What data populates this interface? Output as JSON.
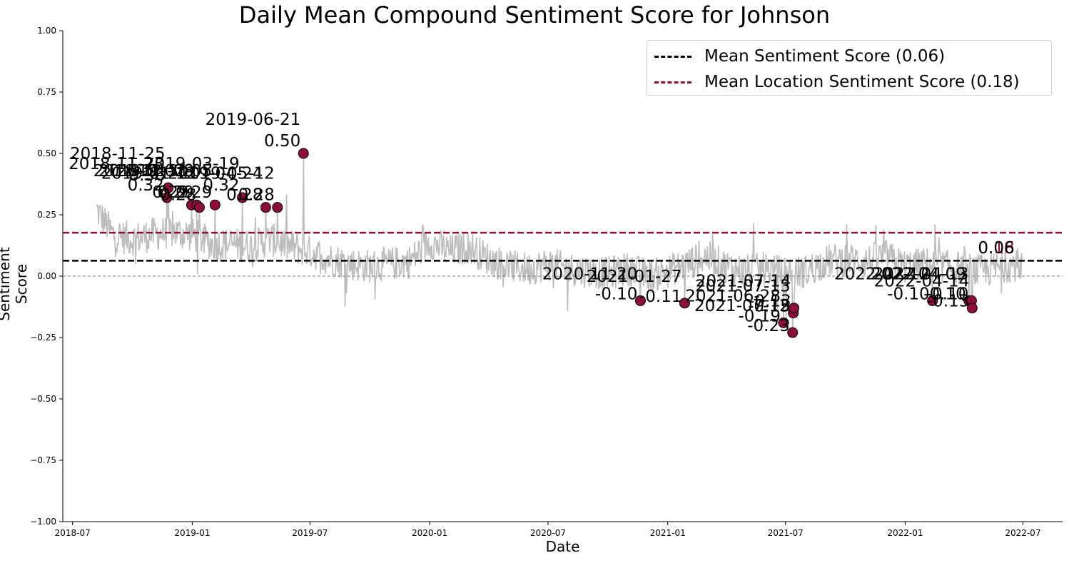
{
  "chart_data": {
    "type": "line",
    "title": "Daily Mean Compound Sentiment Score for Johnson",
    "xlabel": "Date",
    "ylabel": "Sentiment Score",
    "ylim": [
      -1.0,
      1.0
    ],
    "xlim": [
      "2018-06-16",
      "2022-08-31"
    ],
    "x_ticks": [
      "2018-07",
      "2019-01",
      "2019-07",
      "2020-01",
      "2020-07",
      "2021-01",
      "2021-07",
      "2022-01",
      "2022-07"
    ],
    "y_ticks": [
      "1.00",
      "0.75",
      "0.50",
      "0.25",
      "0.00",
      "−0.25",
      "−0.50",
      "−0.75",
      "−1.00"
    ],
    "grid": false,
    "legend_position": "top-right",
    "daily_series_range": [
      "2018-08-07",
      "2022-06-30"
    ],
    "daily_series_control_points": [
      [
        "2018-08-07",
        0.27
      ],
      [
        "2018-09-01",
        0.17
      ],
      [
        "2018-10-01",
        0.15
      ],
      [
        "2018-11-01",
        0.17
      ],
      [
        "2018-12-01",
        0.18
      ],
      [
        "2019-01-01",
        0.17
      ],
      [
        "2019-02-01",
        0.13
      ],
      [
        "2019-03-01",
        0.13
      ],
      [
        "2019-04-01",
        0.12
      ],
      [
        "2019-05-01",
        0.15
      ],
      [
        "2019-06-01",
        0.12
      ],
      [
        "2019-07-01",
        0.1
      ],
      [
        "2019-08-01",
        0.07
      ],
      [
        "2019-09-01",
        0.05
      ],
      [
        "2019-10-01",
        0.04
      ],
      [
        "2019-11-01",
        0.05
      ],
      [
        "2019-12-01",
        0.06
      ],
      [
        "2020-01-01",
        0.14
      ],
      [
        "2020-02-01",
        0.1
      ],
      [
        "2020-03-01",
        0.12
      ],
      [
        "2020-04-01",
        0.07
      ],
      [
        "2020-05-01",
        0.04
      ],
      [
        "2020-06-01",
        0.03
      ],
      [
        "2020-07-01",
        0.05
      ],
      [
        "2020-08-01",
        0.03
      ],
      [
        "2020-09-01",
        0.02
      ],
      [
        "2020-10-01",
        0.01
      ],
      [
        "2020-11-01",
        0.03
      ],
      [
        "2020-12-01",
        0.0
      ],
      [
        "2021-01-01",
        0.02
      ],
      [
        "2021-02-01",
        0.05
      ],
      [
        "2021-03-01",
        0.08
      ],
      [
        "2021-04-01",
        0.04
      ],
      [
        "2021-05-01",
        0.02
      ],
      [
        "2021-06-01",
        0.03
      ],
      [
        "2021-07-01",
        0.01
      ],
      [
        "2021-08-01",
        0.02
      ],
      [
        "2021-09-01",
        0.06
      ],
      [
        "2021-10-01",
        0.07
      ],
      [
        "2021-11-01",
        0.06
      ],
      [
        "2021-12-01",
        0.08
      ],
      [
        "2022-01-01",
        0.04
      ],
      [
        "2022-02-01",
        0.05
      ],
      [
        "2022-03-01",
        0.04
      ],
      [
        "2022-04-01",
        0.03
      ],
      [
        "2022-05-01",
        0.02
      ],
      [
        "2022-06-01",
        0.04
      ],
      [
        "2022-06-30",
        0.05
      ]
    ],
    "daily_series_color": "#bdbdbd",
    "reference_lines": [
      {
        "name": "Mean Sentiment Score (0.06)",
        "y": 0.063,
        "color": "#000000",
        "style": "dashed"
      },
      {
        "name": "Mean Location Sentiment Score (0.18)",
        "y": 0.177,
        "color": "#8b0f3b",
        "style": "dashed"
      },
      {
        "name": "",
        "y": 0.0,
        "color": "#808080",
        "style": "dashed-thin"
      }
    ],
    "highlighted_points": [
      {
        "date": "2018-11-23",
        "value": 0.32,
        "date_label": "2018-11-23",
        "value_label": "0.32"
      },
      {
        "date": "2018-11-25",
        "value": 0.36,
        "date_label": "2018-11-25",
        "value_label": "0.36"
      },
      {
        "date": "2018-12-31",
        "value": 0.29,
        "date_label": "2018-12-31",
        "value_label": "0.29"
      },
      {
        "date": "2019-01-08",
        "value": 0.29,
        "date_label": "2019-01-08",
        "value_label": "0.29"
      },
      {
        "date": "2019-01-12",
        "value": 0.28,
        "date_label": "2019-01-12",
        "value_label": "0.28"
      },
      {
        "date": "2019-02-05",
        "value": 0.29,
        "date_label": "2019-02-05",
        "value_label": "0.29"
      },
      {
        "date": "2019-03-19",
        "value": 0.32,
        "date_label": "2019-03-19",
        "value_label": "0.32"
      },
      {
        "date": "2019-04-24",
        "value": 0.28,
        "date_label": "2019-04-24",
        "value_label": "0.28"
      },
      {
        "date": "2019-05-12",
        "value": 0.28,
        "date_label": "2019-05-12",
        "value_label": "0.28"
      },
      {
        "date": "2019-06-21",
        "value": 0.5,
        "date_label": "2019-06-21",
        "value_label": "0.50"
      },
      {
        "date": "2020-11-20",
        "value": -0.1,
        "date_label": "2020-11-20",
        "value_label": "-0.10"
      },
      {
        "date": "2021-01-27",
        "value": -0.11,
        "date_label": "2021-01-27",
        "value_label": "-0.11"
      },
      {
        "date": "2021-06-28",
        "value": -0.19,
        "date_label": "2021-06-28",
        "value_label": "-0.19"
      },
      {
        "date": "2021-07-12",
        "value": -0.23,
        "date_label": "2021-07-12",
        "value_label": "-0.23"
      },
      {
        "date": "2021-07-13",
        "value": -0.15,
        "date_label": "2021-07-13",
        "value_label": "-0.15"
      },
      {
        "date": "2021-07-14",
        "value": -0.13,
        "date_label": "2021-07-14",
        "value_label": "-0.13"
      },
      {
        "date": "2022-02-12",
        "value": -0.1,
        "date_label": "2022-02-12",
        "value_label": "-0.10"
      },
      {
        "date": "2022-04-09",
        "value": -0.1,
        "date_label": "2022-04-09",
        "value_label": "-0.10"
      },
      {
        "date": "2022-04-13",
        "value": -0.1,
        "date_label": "2022-04-13",
        "value_label": "-0.10"
      },
      {
        "date": "2022-04-14",
        "value": -0.13,
        "date_label": "2022-04-14",
        "value_label": "-0.13"
      }
    ],
    "end_labels": [
      {
        "text": "0.18",
        "color": "#8b0f3b"
      },
      {
        "text": "0.06",
        "color": "#000000"
      }
    ],
    "marker_color": "#8b0f3b"
  }
}
